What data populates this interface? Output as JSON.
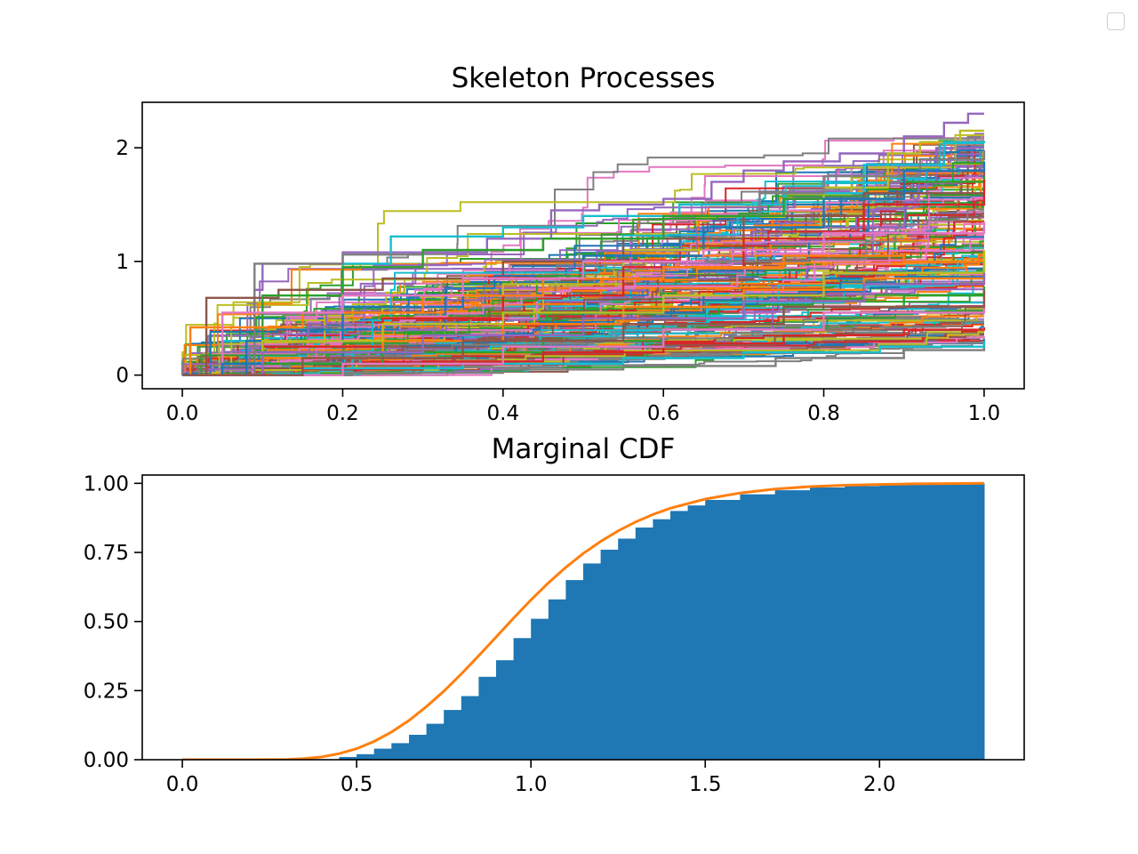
{
  "chart_data": [
    {
      "type": "line",
      "title": "Skeleton Processes",
      "xlabel": "",
      "ylabel": "",
      "xlim": [
        -0.05,
        1.05
      ],
      "ylim": [
        -0.12,
        2.4
      ],
      "xticks": [
        "0.0",
        "0.2",
        "0.4",
        "0.6",
        "0.8",
        "1.0"
      ],
      "yticks": [
        "0",
        "1",
        "2"
      ],
      "xtick_values": [
        0.0,
        0.2,
        0.4,
        0.6,
        0.8,
        1.0
      ],
      "ytick_values": [
        0,
        1,
        2
      ],
      "grid": false,
      "step": true,
      "n_paths": 200,
      "path_time_range": [
        0.0,
        1.0
      ],
      "final_value_range": [
        0.28,
        2.3
      ],
      "series": [
        {
          "color": "#9467bd",
          "points": [
            [
              0,
              0
            ],
            [
              0.03,
              0.05
            ],
            [
              0.09,
              0.75
            ],
            [
              0.1,
              0.98
            ],
            [
              0.2,
              1.08
            ],
            [
              0.38,
              1.2
            ],
            [
              0.46,
              1.45
            ],
            [
              0.52,
              1.5
            ],
            [
              0.6,
              1.55
            ],
            [
              0.66,
              1.7
            ],
            [
              0.7,
              1.8
            ],
            [
              0.75,
              1.88
            ],
            [
              0.82,
              1.95
            ],
            [
              0.9,
              2.1
            ],
            [
              0.95,
              2.22
            ],
            [
              0.98,
              2.3
            ],
            [
              1.0,
              2.3
            ]
          ]
        },
        {
          "color": "#bcbd22",
          "points": [
            [
              0,
              0
            ],
            [
              0.1,
              0.2
            ],
            [
              0.25,
              0.5
            ],
            [
              0.4,
              0.8
            ],
            [
              0.55,
              1.1
            ],
            [
              0.7,
              1.4
            ],
            [
              0.8,
              1.65
            ],
            [
              0.88,
              1.95
            ],
            [
              0.92,
              2.05
            ],
            [
              0.97,
              2.15
            ],
            [
              1.0,
              2.15
            ]
          ]
        },
        {
          "color": "#17becf",
          "points": [
            [
              0,
              0
            ],
            [
              0.05,
              0.3
            ],
            [
              0.2,
              0.98
            ],
            [
              0.26,
              1.22
            ],
            [
              0.4,
              1.3
            ],
            [
              0.5,
              1.4
            ],
            [
              0.62,
              1.5
            ],
            [
              0.75,
              1.6
            ],
            [
              0.85,
              1.85
            ],
            [
              0.95,
              2.05
            ],
            [
              1.0,
              2.06
            ]
          ]
        },
        {
          "color": "#7f7f7f",
          "points": [
            [
              0,
              0
            ],
            [
              0.09,
              0.98
            ],
            [
              0.2,
              1.06
            ],
            [
              0.3,
              1.1
            ],
            [
              0.45,
              1.2
            ],
            [
              0.6,
              1.4
            ],
            [
              0.72,
              1.6
            ],
            [
              0.8,
              1.75
            ],
            [
              0.92,
              1.9
            ],
            [
              1.0,
              1.98
            ]
          ]
        },
        {
          "color": "#8c564b",
          "points": [
            [
              0,
              0
            ],
            [
              0.03,
              0.68
            ],
            [
              0.12,
              0.75
            ],
            [
              0.25,
              0.85
            ],
            [
              0.4,
              1.0
            ],
            [
              0.55,
              1.2
            ],
            [
              0.7,
              1.4
            ],
            [
              0.85,
              1.6
            ],
            [
              1.0,
              1.82
            ]
          ]
        },
        {
          "color": "#2ca02c",
          "points": [
            [
              0,
              0
            ],
            [
              0.1,
              0.7
            ],
            [
              0.2,
              0.95
            ],
            [
              0.3,
              1.1
            ],
            [
              0.45,
              1.2
            ],
            [
              0.6,
              1.4
            ],
            [
              0.75,
              1.55
            ],
            [
              0.9,
              1.7
            ],
            [
              1.0,
              1.75
            ]
          ]
        },
        {
          "color": "#1f77b4",
          "points": [
            [
              0,
              0
            ],
            [
              0.08,
              0.3
            ],
            [
              0.2,
              0.6
            ],
            [
              0.35,
              0.85
            ],
            [
              0.5,
              1.05
            ],
            [
              0.65,
              1.3
            ],
            [
              0.8,
              1.55
            ],
            [
              0.9,
              1.8
            ],
            [
              1.0,
              1.88
            ]
          ]
        },
        {
          "color": "#d62728",
          "points": [
            [
              0,
              0
            ],
            [
              0.1,
              0.25
            ],
            [
              0.25,
              0.5
            ],
            [
              0.4,
              0.7
            ],
            [
              0.55,
              0.95
            ],
            [
              0.7,
              1.2
            ],
            [
              0.85,
              1.5
            ],
            [
              1.0,
              1.72
            ]
          ]
        },
        {
          "color": "#ff7f0e",
          "points": [
            [
              0,
              0
            ],
            [
              0.01,
              0.42
            ],
            [
              0.15,
              0.55
            ],
            [
              0.3,
              0.7
            ],
            [
              0.45,
              0.85
            ],
            [
              0.6,
              0.95
            ],
            [
              0.75,
              1.05
            ],
            [
              0.9,
              1.0
            ],
            [
              1.0,
              1.05
            ]
          ]
        },
        {
          "color": "#e377c2",
          "points": [
            [
              0,
              0
            ],
            [
              0.05,
              0.55
            ],
            [
              0.2,
              0.7
            ],
            [
              0.35,
              0.85
            ],
            [
              0.5,
              1.0
            ],
            [
              0.65,
              1.1
            ],
            [
              0.8,
              1.25
            ],
            [
              1.0,
              1.35
            ]
          ]
        },
        {
          "color": "#1f77b4",
          "points": [
            [
              0,
              0
            ],
            [
              0.05,
              0.1
            ],
            [
              0.2,
              0.2
            ],
            [
              0.35,
              0.35
            ],
            [
              0.5,
              0.55
            ],
            [
              0.65,
              0.7
            ],
            [
              0.8,
              0.85
            ],
            [
              1.0,
              1.0
            ]
          ]
        },
        {
          "color": "#ff7f0e",
          "points": [
            [
              0,
              0
            ],
            [
              0.1,
              0.15
            ],
            [
              0.25,
              0.3
            ],
            [
              0.4,
              0.45
            ],
            [
              0.55,
              0.6
            ],
            [
              0.7,
              0.75
            ],
            [
              0.85,
              0.85
            ],
            [
              1.0,
              0.95
            ]
          ]
        },
        {
          "color": "#2ca02c",
          "points": [
            [
              0,
              0
            ],
            [
              0.1,
              0.1
            ],
            [
              0.25,
              0.2
            ],
            [
              0.45,
              0.3
            ],
            [
              0.6,
              0.45
            ],
            [
              0.75,
              0.6
            ],
            [
              0.9,
              0.7
            ],
            [
              1.0,
              0.78
            ]
          ]
        },
        {
          "color": "#d62728",
          "points": [
            [
              0,
              0
            ],
            [
              0.15,
              0.05
            ],
            [
              0.3,
              0.12
            ],
            [
              0.45,
              0.2
            ],
            [
              0.6,
              0.28
            ],
            [
              0.75,
              0.35
            ],
            [
              0.9,
              0.4
            ],
            [
              1.0,
              0.42
            ]
          ]
        },
        {
          "color": "#7f7f7f",
          "points": [
            [
              0,
              0
            ],
            [
              0.2,
              0.02
            ],
            [
              0.4,
              0.05
            ],
            [
              0.55,
              0.08
            ],
            [
              0.74,
              0.15
            ],
            [
              0.9,
              0.22
            ],
            [
              1.0,
              0.3
            ]
          ]
        },
        {
          "color": "#17becf",
          "points": [
            [
              0,
              0
            ],
            [
              0.15,
              0.06
            ],
            [
              0.35,
              0.1
            ],
            [
              0.55,
              0.15
            ],
            [
              0.7,
              0.2
            ],
            [
              0.87,
              0.25
            ],
            [
              1.0,
              0.3
            ]
          ]
        },
        {
          "color": "#bcbd22",
          "points": [
            [
              0,
              0
            ],
            [
              0.1,
              0.3
            ],
            [
              0.25,
              0.45
            ],
            [
              0.4,
              0.55
            ],
            [
              0.6,
              0.7
            ],
            [
              0.8,
              0.9
            ],
            [
              1.0,
              1.1
            ]
          ]
        },
        {
          "color": "#9467bd",
          "points": [
            [
              0,
              0
            ],
            [
              0.1,
              0.2
            ],
            [
              0.3,
              0.35
            ],
            [
              0.5,
              0.5
            ],
            [
              0.7,
              0.65
            ],
            [
              0.85,
              0.8
            ],
            [
              1.0,
              0.9
            ]
          ]
        },
        {
          "color": "#e377c2",
          "points": [
            [
              0,
              0
            ],
            [
              0.2,
              0.1
            ],
            [
              0.4,
              0.25
            ],
            [
              0.6,
              0.4
            ],
            [
              0.8,
              0.55
            ],
            [
              1.0,
              0.65
            ]
          ]
        },
        {
          "color": "#8c564b",
          "points": [
            [
              0,
              0
            ],
            [
              0.15,
              0.15
            ],
            [
              0.35,
              0.3
            ],
            [
              0.55,
              0.45
            ],
            [
              0.75,
              0.6
            ],
            [
              1.0,
              0.75
            ]
          ]
        }
      ]
    },
    {
      "type": "area",
      "title": "Marginal CDF",
      "xlabel": "",
      "ylabel": "",
      "xlim": [
        -0.115,
        2.415
      ],
      "ylim": [
        0.0,
        1.03
      ],
      "xticks": [
        "0.0",
        "0.5",
        "1.0",
        "1.5",
        "2.0"
      ],
      "yticks": [
        "0.00",
        "0.25",
        "0.50",
        "0.75",
        "1.00"
      ],
      "xtick_values": [
        0.0,
        0.5,
        1.0,
        1.5,
        2.0
      ],
      "ytick_values": [
        0.0,
        0.25,
        0.5,
        0.75,
        1.0
      ],
      "grid": false,
      "series": [
        {
          "name": "",
          "kind": "cumulative-histogram",
          "color": "#1f77b4",
          "bins": [
            [
              0.0,
              0.0
            ],
            [
              0.45,
              0.01
            ],
            [
              0.5,
              0.02
            ],
            [
              0.55,
              0.04
            ],
            [
              0.6,
              0.06
            ],
            [
              0.65,
              0.09
            ],
            [
              0.7,
              0.13
            ],
            [
              0.75,
              0.18
            ],
            [
              0.8,
              0.23
            ],
            [
              0.85,
              0.3
            ],
            [
              0.9,
              0.36
            ],
            [
              0.95,
              0.44
            ],
            [
              1.0,
              0.51
            ],
            [
              1.05,
              0.58
            ],
            [
              1.1,
              0.65
            ],
            [
              1.15,
              0.71
            ],
            [
              1.2,
              0.76
            ],
            [
              1.25,
              0.8
            ],
            [
              1.3,
              0.84
            ],
            [
              1.35,
              0.87
            ],
            [
              1.4,
              0.9
            ],
            [
              1.45,
              0.92
            ],
            [
              1.5,
              0.94
            ],
            [
              1.6,
              0.96
            ],
            [
              1.7,
              0.975
            ],
            [
              1.8,
              0.985
            ],
            [
              1.9,
              0.99
            ],
            [
              2.0,
              0.995
            ],
            [
              2.1,
              0.998
            ],
            [
              2.2,
              1.0
            ],
            [
              2.3,
              1.0
            ]
          ]
        },
        {
          "name": "",
          "kind": "line",
          "color": "#ff7f0e",
          "x": [
            0.0,
            0.2,
            0.3,
            0.35,
            0.4,
            0.45,
            0.5,
            0.55,
            0.6,
            0.65,
            0.7,
            0.75,
            0.8,
            0.85,
            0.9,
            0.95,
            1.0,
            1.05,
            1.1,
            1.15,
            1.2,
            1.25,
            1.3,
            1.35,
            1.4,
            1.5,
            1.6,
            1.7,
            1.8,
            1.9,
            2.0,
            2.1,
            2.2,
            2.3
          ],
          "y": [
            0.0,
            0.0,
            0.001,
            0.004,
            0.01,
            0.022,
            0.04,
            0.066,
            0.1,
            0.142,
            0.192,
            0.248,
            0.31,
            0.376,
            0.444,
            0.512,
            0.578,
            0.64,
            0.696,
            0.746,
            0.79,
            0.828,
            0.86,
            0.887,
            0.91,
            0.943,
            0.965,
            0.979,
            0.988,
            0.993,
            0.996,
            0.998,
            0.999,
            1.0
          ]
        }
      ]
    }
  ]
}
